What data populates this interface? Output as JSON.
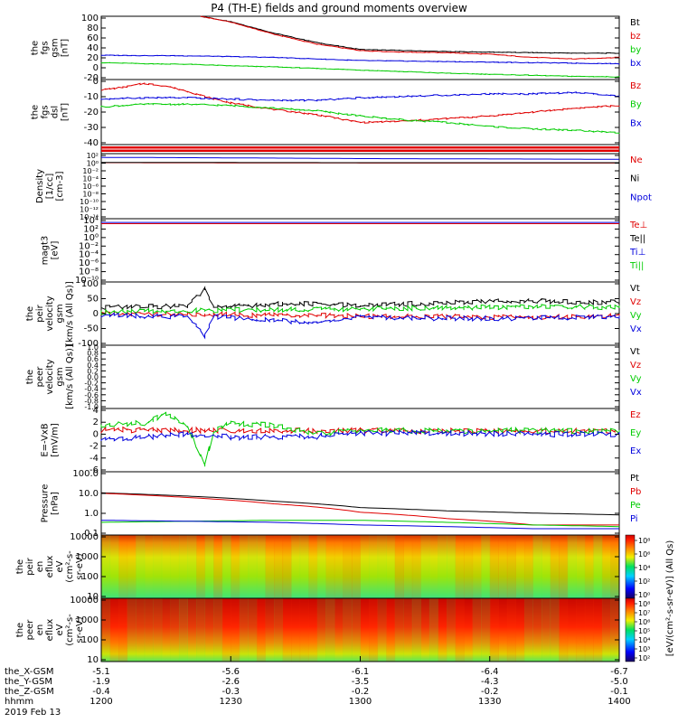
{
  "title": "P4 (TH-E) fields and ground moments overview",
  "colors": {
    "black": "#000000",
    "red": "#e00000",
    "green": "#00cc00",
    "blue": "#0000dd"
  },
  "chart_data": [
    {
      "type": "line",
      "ylabel": [
        "the",
        "fgs",
        "gsm",
        "[nT]"
      ],
      "ylim": [
        -20,
        100
      ],
      "ticks": [
        "100",
        "80",
        "60",
        "40",
        "20",
        "0",
        "-20"
      ],
      "legend": [
        {
          "name": "Bt",
          "color": "black"
        },
        {
          "name": "bz",
          "color": "red"
        },
        {
          "name": "by",
          "color": "green"
        },
        {
          "name": "bx",
          "color": "blue"
        }
      ],
      "series": [
        {
          "name": "Bt",
          "color": "black",
          "x": [
            1223,
            1230,
            1240,
            1250,
            1300,
            1310,
            1320,
            1330,
            1340,
            1350,
            1400
          ],
          "y": [
            100,
            90,
            68,
            50,
            37,
            35,
            33,
            32,
            31,
            30,
            30
          ]
        },
        {
          "name": "bz",
          "color": "red",
          "x": [
            1223,
            1230,
            1240,
            1250,
            1300,
            1310,
            1320,
            1330,
            1340,
            1350,
            1400
          ],
          "y": [
            100,
            89,
            66,
            47,
            35,
            32,
            31,
            28,
            22,
            19,
            22
          ]
        },
        {
          "name": "by",
          "color": "green",
          "x": [
            1200,
            1210,
            1220,
            1230,
            1240,
            1250,
            1300,
            1310,
            1320,
            1330,
            1340,
            1350,
            1400
          ],
          "y": [
            12,
            10,
            9,
            6,
            4,
            1,
            -2,
            -5,
            -8,
            -10,
            -12,
            -14,
            -15
          ]
        },
        {
          "name": "bx",
          "color": "blue",
          "x": [
            1200,
            1220,
            1240,
            1300,
            1320,
            1340,
            1400
          ],
          "y": [
            26,
            25,
            22,
            16,
            14,
            12,
            10
          ]
        }
      ]
    },
    {
      "type": "line",
      "ylabel": [
        "the",
        "fgs",
        "dsl",
        "[nT]"
      ],
      "ylim": [
        -45,
        5
      ],
      "ticks": [
        "0",
        "-10",
        "-20",
        "-30",
        "-40"
      ],
      "legend": [
        {
          "name": "Bz",
          "color": "red"
        },
        {
          "name": "By",
          "color": "green"
        },
        {
          "name": "Bx",
          "color": "blue"
        }
      ],
      "series": [
        {
          "name": "Bz",
          "color": "red",
          "x": [
            1200,
            1205,
            1210,
            1215,
            1220,
            1225,
            1230,
            1240,
            1250,
            1300,
            1310,
            1320,
            1330,
            1340,
            1350,
            1400
          ],
          "y": [
            -3,
            -1,
            2,
            0,
            -4,
            -9,
            -13,
            -18,
            -22,
            -28,
            -27,
            -25,
            -23,
            -20,
            -17,
            -15
          ]
        },
        {
          "name": "By",
          "color": "green",
          "x": [
            1200,
            1210,
            1220,
            1230,
            1240,
            1250,
            1300,
            1310,
            1320,
            1330,
            1340,
            1350,
            1400
          ],
          "y": [
            -16,
            -14,
            -14,
            -15,
            -17,
            -19,
            -23,
            -26,
            -28,
            -31,
            -33,
            -34,
            -36
          ]
        },
        {
          "name": "Bx",
          "color": "blue",
          "x": [
            1200,
            1210,
            1220,
            1230,
            1240,
            1250,
            1300,
            1310,
            1320,
            1330,
            1340,
            1350,
            1400
          ],
          "y": [
            -10,
            -9,
            -9,
            -10,
            -11,
            -11,
            -9,
            -8,
            -7,
            -6,
            -6,
            -5,
            -8
          ]
        }
      ]
    },
    {
      "type": "bar",
      "ylabel": [],
      "note": "spacecraft flag bars (red)"
    },
    {
      "type": "line",
      "ylabel": [
        "Density",
        "[1/cc]",
        "[cm-3]"
      ],
      "yscale": "log",
      "ylim": [
        1e-14,
        100.0
      ],
      "ticks": [
        "10²",
        "10⁰",
        "10⁻²",
        "10⁻⁴",
        "10⁻⁶",
        "10⁻⁸",
        "10⁻¹⁰",
        "10⁻¹²",
        "10⁻¹⁴"
      ],
      "legend": [
        {
          "name": "Ne",
          "color": "red"
        },
        {
          "name": "Ni",
          "color": "black"
        },
        {
          "name": "Npot",
          "color": "blue"
        }
      ],
      "series": [
        {
          "name": "Npot",
          "color": "blue",
          "x": [
            1200,
            1300,
            1400
          ],
          "y": [
            12,
            6,
            4
          ]
        },
        {
          "name": "Ne",
          "color": "red",
          "x": [
            1200,
            1300,
            1400
          ],
          "y": [
            0.6,
            0.5,
            0.5
          ]
        },
        {
          "name": "Ni",
          "color": "black",
          "x": [
            1200,
            1300,
            1400
          ],
          "y": [
            0.7,
            0.6,
            0.6
          ]
        }
      ]
    },
    {
      "type": "line",
      "ylabel": [
        "magt3",
        "[eV]"
      ],
      "yscale": "log",
      "ylim": [
        1e-10,
        10000.0
      ],
      "ticks": [
        "10⁴",
        "10²",
        "10⁰",
        "10⁻²",
        "10⁻⁴",
        "10⁻⁶",
        "10⁻⁸",
        "10⁻¹⁰"
      ],
      "legend": [
        {
          "name": "Te⊥",
          "color": "red"
        },
        {
          "name": "Te||",
          "color": "black"
        },
        {
          "name": "Ti⊥",
          "color": "blue"
        },
        {
          "name": "Ti||",
          "color": "green"
        }
      ],
      "series": [
        {
          "name": "Te⊥",
          "color": "red",
          "x": [
            1200,
            1400
          ],
          "y": [
            800,
            800
          ]
        },
        {
          "name": "Ti⊥",
          "color": "blue",
          "x": [
            1200,
            1400
          ],
          "y": [
            1500,
            1500
          ]
        }
      ]
    },
    {
      "type": "line",
      "ylabel": [
        "the",
        "peir",
        "velocity",
        "gsm",
        "[km/s (All Qs)]"
      ],
      "ylim": [
        -100,
        100
      ],
      "ticks": [
        "100",
        "50",
        "0",
        "-50",
        "-100"
      ],
      "legend": [
        {
          "name": "Vt",
          "color": "black"
        },
        {
          "name": "Vz",
          "color": "red"
        },
        {
          "name": "Vy",
          "color": "green"
        },
        {
          "name": "Vx",
          "color": "blue"
        }
      ],
      "series": [
        {
          "name": "Vt",
          "color": "black",
          "x": [
            1200,
            1210,
            1220,
            1224,
            1226,
            1230,
            1240,
            1250,
            1300,
            1310,
            1320,
            1330,
            1340,
            1350,
            1400
          ],
          "y": [
            20,
            22,
            25,
            75,
            20,
            22,
            30,
            30,
            25,
            30,
            35,
            38,
            42,
            35,
            38
          ]
        },
        {
          "name": "Vz",
          "color": "red",
          "x": [
            1200,
            1220,
            1240,
            1300,
            1320,
            1340,
            1400
          ],
          "y": [
            0,
            -2,
            -5,
            -8,
            -10,
            -12,
            -8
          ]
        },
        {
          "name": "Vy",
          "color": "green",
          "x": [
            1200,
            1220,
            1240,
            1300,
            1320,
            1340,
            1400
          ],
          "y": [
            5,
            10,
            12,
            15,
            18,
            22,
            20
          ]
        },
        {
          "name": "Vx",
          "color": "blue",
          "x": [
            1200,
            1220,
            1224,
            1226,
            1240,
            1250,
            1300,
            1320,
            1340,
            1400
          ],
          "y": [
            -5,
            -10,
            -70,
            -10,
            -20,
            -30,
            -10,
            -15,
            -15,
            -10
          ]
        }
      ]
    },
    {
      "type": "line",
      "ylabel": [
        "the",
        "peer",
        "velocity",
        "gsm",
        "[km/s (All Qs)]"
      ],
      "ylim": [
        -1,
        1
      ],
      "ticks": [
        "1.0",
        "0.8",
        "0.6",
        "0.4",
        "0.2",
        "0.0",
        "-0.2",
        "-0.4",
        "-0.6",
        "-0.8",
        "-1.0"
      ],
      "legend": [
        {
          "name": "Vt",
          "color": "black"
        },
        {
          "name": "Vz",
          "color": "red"
        },
        {
          "name": "Vy",
          "color": "green"
        },
        {
          "name": "Vx",
          "color": "blue"
        }
      ],
      "series": []
    },
    {
      "type": "line",
      "ylabel": [
        "E=-VxB",
        "[mV/m]"
      ],
      "ylim": [
        -7,
        4
      ],
      "ticks": [
        "4",
        "2",
        "0",
        "-2",
        "-4",
        "-6"
      ],
      "legend": [
        {
          "name": "Ez",
          "color": "red"
        },
        {
          "name": "Ey",
          "color": "green"
        },
        {
          "name": "Ex",
          "color": "blue"
        }
      ],
      "series": [
        {
          "name": "Ez",
          "color": "red",
          "x": [
            1200,
            1220,
            1240,
            1300,
            1320,
            1340,
            1400
          ],
          "y": [
            0.3,
            0.2,
            0.2,
            0.1,
            0.1,
            0.1,
            0.1
          ]
        },
        {
          "name": "Ey",
          "color": "green",
          "x": [
            1200,
            1210,
            1215,
            1220,
            1224,
            1226,
            1230,
            1240,
            1250,
            1300,
            1320,
            1340,
            1400
          ],
          "y": [
            1,
            1.5,
            3,
            1,
            -6,
            0,
            1.5,
            1,
            -0.5,
            0.2,
            0.1,
            0.2,
            0
          ]
        },
        {
          "name": "Ex",
          "color": "blue",
          "x": [
            1200,
            1210,
            1220,
            1230,
            1240,
            1250,
            1300,
            1320,
            1340,
            1400
          ],
          "y": [
            -1.5,
            -1,
            -0.5,
            -1,
            -1,
            -0.8,
            -0.3,
            -0.3,
            -0.5,
            -0.4
          ]
        }
      ]
    },
    {
      "type": "line",
      "ylabel": [
        "Pressure",
        "[nPa]"
      ],
      "yscale": "log",
      "ylim": [
        0.1,
        100
      ],
      "ticks": [
        "100.0",
        "10.0",
        "1.0",
        "0.1"
      ],
      "legend": [
        {
          "name": "Pt",
          "color": "black"
        },
        {
          "name": "Pb",
          "color": "red"
        },
        {
          "name": "Pe",
          "color": "green"
        },
        {
          "name": "Pi",
          "color": "blue"
        }
      ],
      "series": [
        {
          "name": "Pt",
          "color": "black",
          "x": [
            1200,
            1220,
            1240,
            1300,
            1320,
            1340,
            1400
          ],
          "y": [
            10,
            7,
            4,
            2,
            1.4,
            1.1,
            0.9
          ]
        },
        {
          "name": "Pb",
          "color": "red",
          "x": [
            1200,
            1220,
            1240,
            1300,
            1320,
            1340,
            1400
          ],
          "y": [
            9.5,
            6,
            3,
            1.2,
            0.6,
            0.3,
            0.3
          ]
        },
        {
          "name": "Pe",
          "color": "green",
          "x": [
            1200,
            1220,
            1240,
            1300,
            1320,
            1340,
            1400
          ],
          "y": [
            0.4,
            0.45,
            0.5,
            0.5,
            0.4,
            0.3,
            0.25
          ]
        },
        {
          "name": "Pi",
          "color": "blue",
          "x": [
            1200,
            1220,
            1240,
            1300,
            1320,
            1340,
            1400
          ],
          "y": [
            0.5,
            0.45,
            0.4,
            0.3,
            0.25,
            0.2,
            0.2
          ]
        }
      ]
    },
    {
      "type": "heatmap",
      "ylabel": [
        "the",
        "peir",
        "en",
        "eflux",
        "eV",
        "(cm²-s-",
        "sr-eV)"
      ],
      "yscale": "log",
      "ylim": [
        5,
        30000
      ],
      "ticks": [
        "10000",
        "1000",
        "100",
        "10"
      ]
    },
    {
      "type": "heatmap",
      "ylabel": [
        "the",
        "peer",
        "en",
        "eflux",
        "eV",
        "(cm²-s-",
        "sr-eV)"
      ],
      "yscale": "log",
      "ylim": [
        5,
        30000
      ],
      "ticks": [
        "10000",
        "1000",
        "100",
        "10"
      ]
    }
  ],
  "colorbars": [
    {
      "ticks": [
        "10⁸",
        "10⁶",
        "10⁴",
        "10²",
        "10⁰"
      ]
    },
    {
      "ticks": [
        "10⁸",
        "10⁷",
        "10⁶",
        "10⁵",
        "10⁴",
        "10³",
        "10²"
      ]
    }
  ],
  "colorbar_label": "[eV/(cm²-s-sr-eV)] (All Qs)",
  "xaxis": {
    "rows": [
      {
        "label": "the_X-GSM",
        "values": [
          "-5.1",
          "-5.6",
          "-6.1",
          "-6.4",
          "-6.7"
        ]
      },
      {
        "label": "the_Y-GSM",
        "values": [
          "-1.9",
          "-2.6",
          "-3.5",
          "-4.3",
          "-5.0"
        ]
      },
      {
        "label": "the_Z-GSM",
        "values": [
          "-0.4",
          "-0.3",
          "-0.2",
          "-0.2",
          "-0.1"
        ]
      },
      {
        "label": "hhmm",
        "values": [
          "1200",
          "1230",
          "1300",
          "1330",
          "1400"
        ]
      }
    ],
    "date": "2019 Feb 13"
  }
}
